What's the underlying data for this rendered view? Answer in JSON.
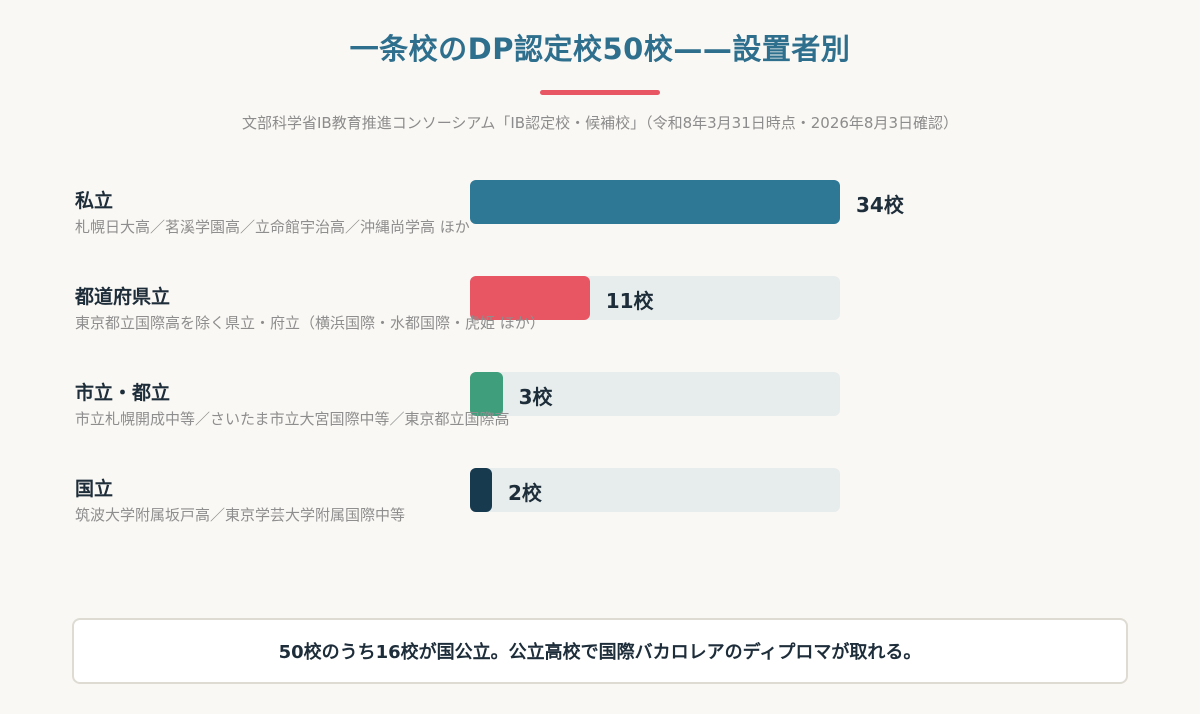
{
  "title": "一条校のDP認定校50校——設置者別",
  "source": "文部科学省IB教育推進コンソーシアム「IB認定校・候補校」（令和8年3月31日時点・2026年8月3日確認）",
  "colors": {
    "title": "#2f6f8e",
    "accent_rule": "#e85563",
    "track": "#e4ebeb"
  },
  "chart_data": {
    "type": "bar",
    "orientation": "horizontal",
    "unit": "校",
    "xlim": [
      0,
      34
    ],
    "categories": [
      "私立",
      "都道府県立",
      "市立・都立",
      "国立"
    ],
    "values": [
      34,
      11,
      3,
      2
    ],
    "value_labels": [
      "34校",
      "11校",
      "3校",
      "2校"
    ],
    "descriptions": [
      "札幌日大高／茗溪学園高／立命館宇治高／沖縄尚学高 ほか",
      "東京都立国際高を除く県立・府立（横浜国際・水都国際・虎姫 ほか）",
      "市立札幌開成中等／さいたま市立大宮国際中等／東京都立国際高",
      "筑波大学附属坂戸高／東京学芸大学附属国際中等"
    ],
    "bar_colors": [
      "#2e7896",
      "#e85563",
      "#3f9e7c",
      "#173a4f"
    ]
  },
  "summary": "50校のうち16校が国公立。公立高校で国際バカロレアのディプロマが取れる。"
}
